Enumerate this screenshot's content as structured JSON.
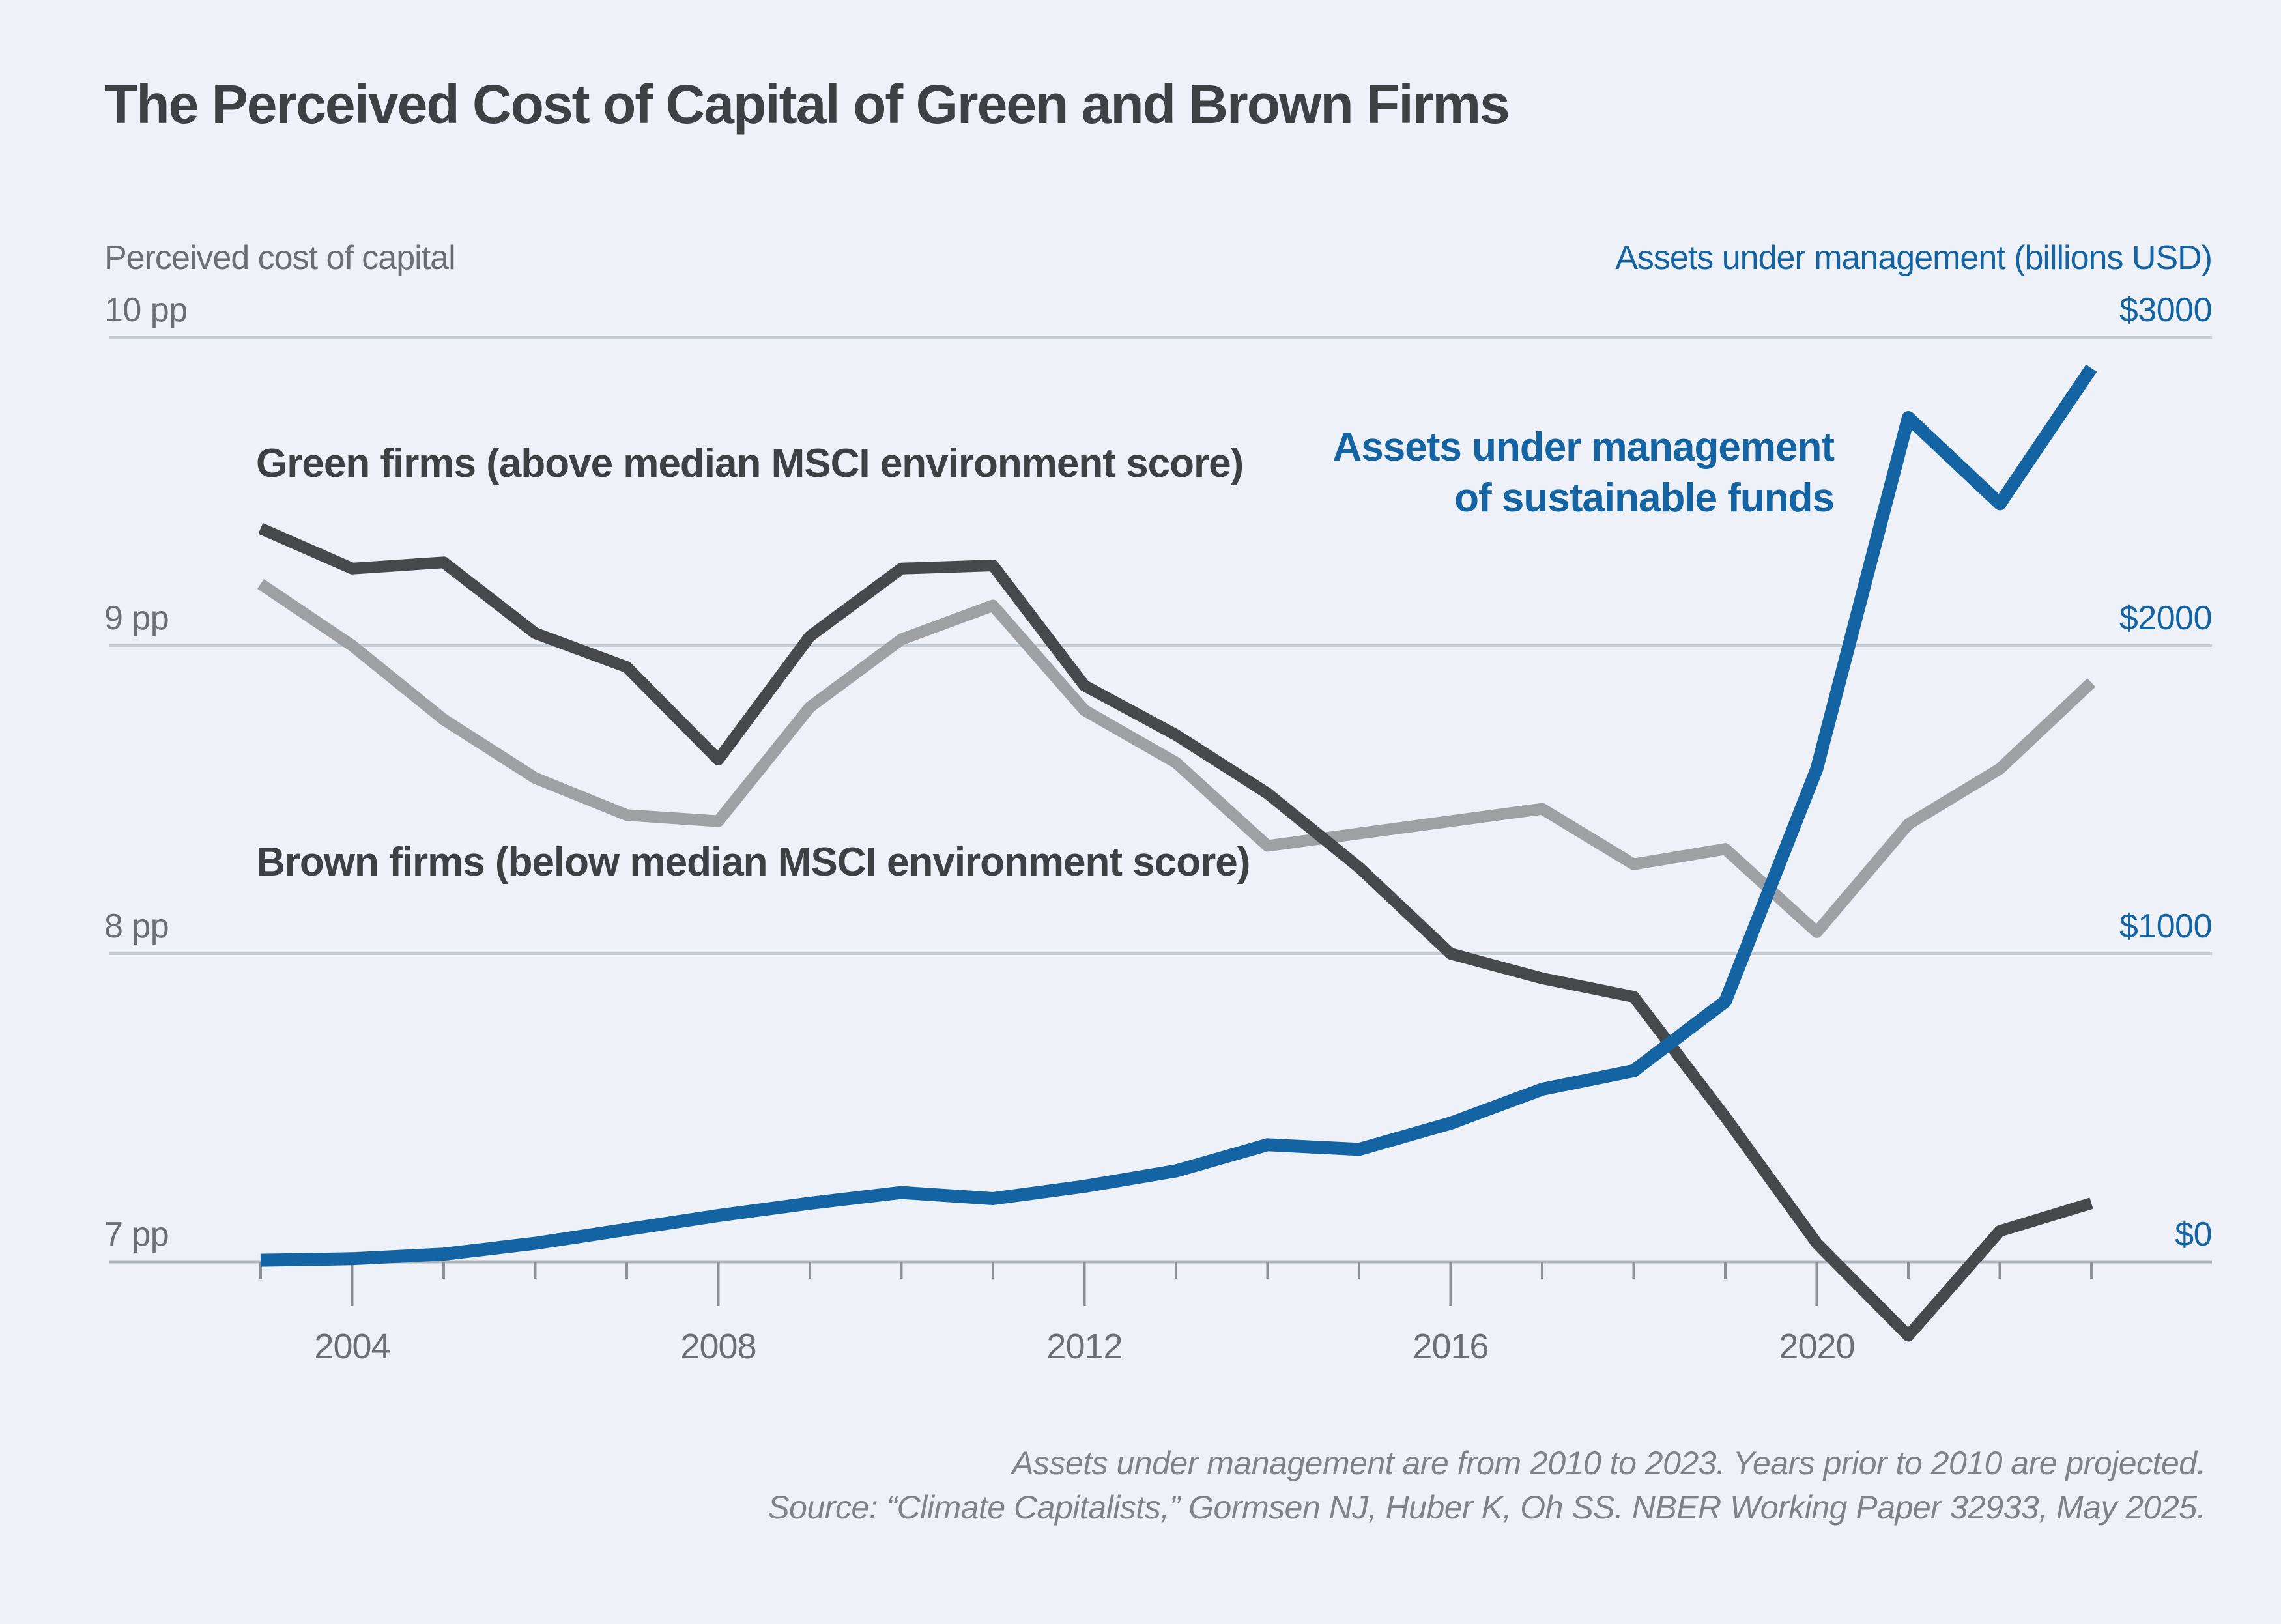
{
  "title": "The Perceived Cost of Capital of Green and Brown Firms",
  "left_axis": {
    "title": "Perceived cost of capital",
    "tick_labels": [
      "10 pp",
      "9 pp",
      "8 pp",
      "7 pp"
    ]
  },
  "right_axis": {
    "title": "Assets under management (billions USD)",
    "tick_labels": [
      "$3000",
      "$2000",
      "$1000",
      "$0"
    ]
  },
  "series_labels": {
    "green": "Green firms (above median MSCI environment score)",
    "brown": "Brown firms (below median MSCI environment score)",
    "aum_line1": "Assets under management",
    "aum_line2": "of sustainable funds"
  },
  "footer": {
    "line1": "Assets under management are from 2010 to 2023. Years prior to 2010 are projected.",
    "line2": "Source: “Climate Capitalists,” Gormsen NJ, Huber K, Oh SS. NBER Working Paper 32933, May 2025."
  },
  "colors": {
    "background": "#eef2f8",
    "green_firms": "#47484b",
    "brown_firms": "#9ea0a4",
    "aum": "#1464a4",
    "grid": "#c7cdd5",
    "axis_line": "#b0b6bd",
    "tick": "#8d9196",
    "text_dark": "#3e4043",
    "text_gray": "#6b6f74"
  },
  "chart_data": {
    "type": "line",
    "title": "The Perceived Cost of Capital of Green and Brown Firms",
    "x": [
      2003,
      2004,
      2005,
      2006,
      2007,
      2008,
      2009,
      2010,
      2011,
      2012,
      2013,
      2014,
      2015,
      2016,
      2017,
      2018,
      2019,
      2020,
      2021,
      2022,
      2023
    ],
    "x_label_years": [
      2004,
      2008,
      2012,
      2016,
      2020
    ],
    "left_ylabel": "Perceived cost of capital (pp)",
    "right_ylabel": "Assets under management (billions USD)",
    "left_gridline_values": [
      10,
      9,
      8,
      7
    ],
    "right_gridline_values": [
      3000,
      2000,
      1000,
      0
    ],
    "left_ylim": [
      7,
      10
    ],
    "right_ylim": [
      0,
      3000
    ],
    "grid": true,
    "legend_position": "inline-annotations",
    "series": [
      {
        "id": "green_firms",
        "name": "Green firms (above median MSCI environment score)",
        "axis": "left",
        "unit": "pp",
        "values": [
          9.38,
          9.25,
          9.27,
          9.04,
          8.93,
          8.63,
          9.03,
          9.25,
          9.26,
          8.87,
          8.71,
          8.52,
          8.28,
          8.0,
          7.92,
          7.86,
          7.47,
          7.06,
          6.76,
          7.1,
          7.19
        ]
      },
      {
        "id": "brown_firms",
        "name": "Brown firms (below median MSCI environment score)",
        "axis": "left",
        "unit": "pp",
        "values": [
          9.2,
          9.0,
          8.76,
          8.57,
          8.45,
          8.43,
          8.8,
          9.02,
          9.13,
          8.79,
          8.62,
          8.35,
          8.39,
          8.43,
          8.47,
          8.29,
          8.34,
          8.07,
          8.42,
          8.6,
          8.88
        ]
      },
      {
        "id": "aum_sustainable_funds",
        "name": "Assets under management of sustainable funds",
        "axis": "right",
        "unit": "billions USD",
        "values": [
          5,
          10,
          25,
          60,
          105,
          150,
          190,
          225,
          205,
          245,
          295,
          380,
          365,
          450,
          560,
          620,
          845,
          1600,
          2740,
          2460,
          2900
        ]
      }
    ]
  }
}
